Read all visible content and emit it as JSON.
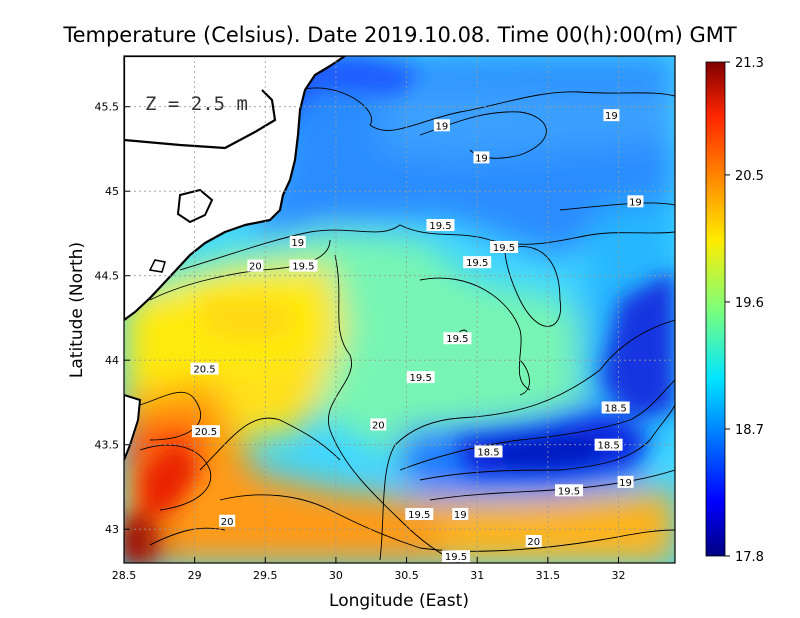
{
  "chart_data": {
    "type": "heatmap",
    "title": "Temperature (Celsius). Date 2019.10.08. Time 00(h):00(m)  GMT",
    "xlabel": "Longitude (East)",
    "ylabel": "Latitude (North)",
    "annotation": "Z = 2.5 m",
    "xlim": [
      28.5,
      32.4
    ],
    "ylim": [
      42.8,
      45.8
    ],
    "xticks": [
      28.5,
      29,
      29.5,
      30,
      30.5,
      31,
      31.5,
      32
    ],
    "xtick_labels": [
      "28.5",
      "29",
      "29.5",
      "30",
      "30.5",
      "31",
      "31.5",
      "32"
    ],
    "yticks": [
      43,
      43.5,
      44,
      44.5,
      45,
      45.5
    ],
    "ytick_labels": [
      "43",
      "43.5",
      "44",
      "44.5",
      "45",
      "45.5"
    ],
    "grid": true,
    "colorbar": {
      "min": 17.8,
      "max": 21.3,
      "ticks": [
        21.3,
        20.5,
        19.6,
        18.7,
        17.8
      ],
      "tick_labels": [
        "21.3",
        "20.5",
        "19.6",
        "18.7",
        "17.8"
      ],
      "colormap": "jet"
    },
    "contour_labels": [
      {
        "text": "19",
        "lon": 30.75,
        "lat": 45.39
      },
      {
        "text": "19",
        "lon": 31.03,
        "lat": 45.2
      },
      {
        "text": "19",
        "lon": 31.95,
        "lat": 45.45
      },
      {
        "text": "19",
        "lon": 32.12,
        "lat": 44.94
      },
      {
        "text": "19.5",
        "lon": 30.74,
        "lat": 44.8
      },
      {
        "text": "19",
        "lon": 29.73,
        "lat": 44.7
      },
      {
        "text": "20",
        "lon": 29.43,
        "lat": 44.56
      },
      {
        "text": "19.5",
        "lon": 29.77,
        "lat": 44.56
      },
      {
        "text": "19.5",
        "lon": 31.19,
        "lat": 44.67
      },
      {
        "text": "19.5",
        "lon": 31.0,
        "lat": 44.58
      },
      {
        "text": "19.5",
        "lon": 30.86,
        "lat": 44.13
      },
      {
        "text": "20.5",
        "lon": 29.07,
        "lat": 43.95
      },
      {
        "text": "19.5",
        "lon": 30.6,
        "lat": 43.9
      },
      {
        "text": "18.5",
        "lon": 31.98,
        "lat": 43.72
      },
      {
        "text": "20",
        "lon": 30.3,
        "lat": 43.62
      },
      {
        "text": "20.5",
        "lon": 29.08,
        "lat": 43.58
      },
      {
        "text": "18.5",
        "lon": 31.93,
        "lat": 43.5
      },
      {
        "text": "18.5",
        "lon": 31.08,
        "lat": 43.46
      },
      {
        "text": "19",
        "lon": 32.05,
        "lat": 43.28
      },
      {
        "text": "19.5",
        "lon": 31.65,
        "lat": 43.23
      },
      {
        "text": "20",
        "lon": 29.23,
        "lat": 43.05
      },
      {
        "text": "19.5",
        "lon": 30.59,
        "lat": 43.09
      },
      {
        "text": "19",
        "lon": 30.88,
        "lat": 43.09
      },
      {
        "text": "20",
        "lon": 31.4,
        "lat": 42.93
      },
      {
        "text": "19.5",
        "lon": 30.85,
        "lat": 42.84
      }
    ]
  }
}
